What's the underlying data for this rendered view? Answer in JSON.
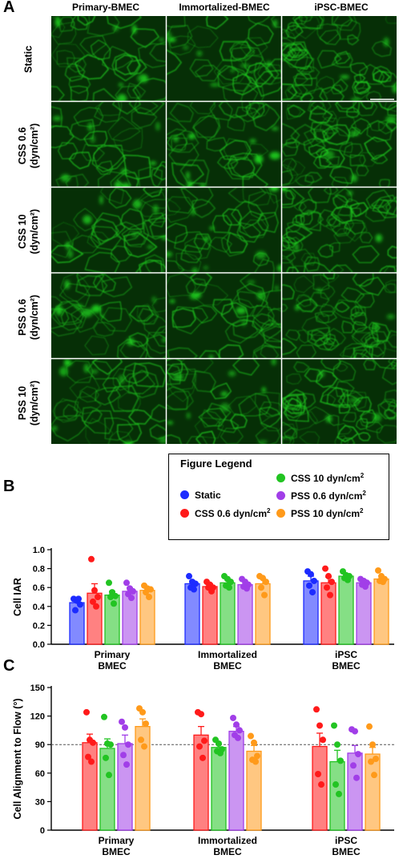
{
  "panel_a": {
    "letter": "A",
    "columns": [
      "Primary-BMEC",
      "Immortalized-BMEC",
      "iPSC-BMEC"
    ],
    "rows": [
      {
        "line1": "Static",
        "line2": ""
      },
      {
        "line1": "CSS 0.6",
        "line2": "(dyn/cm²)"
      },
      {
        "line1": "CSS 10",
        "line2": "(dyn/cm²)"
      },
      {
        "line1": "PSS 0.6",
        "line2": "(dyn/cm²)"
      },
      {
        "line1": "PSS 10",
        "line2": "(dyn/cm²)"
      }
    ],
    "image_color": "#1fd11f"
  },
  "legend": {
    "title": "Figure Legend",
    "entries": [
      {
        "label": "Static",
        "color": "#1c2bff"
      },
      {
        "label": "CSS 0.6 dyn/cm²",
        "color": "#ff1a1a"
      },
      {
        "label": "CSS 10 dyn/cm²",
        "color": "#22c422"
      },
      {
        "label": "PSS 0.6 dyn/cm²",
        "color": "#a13ee8"
      },
      {
        "label": "PSS 10 dyn/cm²",
        "color": "#ff9a1a"
      }
    ]
  },
  "chart_data": [
    {
      "panel": "B",
      "type": "bar",
      "ylabel": "Cell IAR",
      "ylim": [
        0,
        1.0
      ],
      "yticks": [
        "0.0",
        "0.2",
        "0.4",
        "0.6",
        "0.8",
        "1.0"
      ],
      "groups": [
        {
          "line1": "Primary",
          "line2": "BMEC"
        },
        {
          "line1": "Immortalized",
          "line2": "BMEC"
        },
        {
          "line1": "iPSC",
          "line2": "BMEC"
        }
      ],
      "series_names": [
        "Static",
        "CSS 0.6 dyn/cm²",
        "CSS 10 dyn/cm²",
        "PSS 0.6 dyn/cm²",
        "PSS 10 dyn/cm²"
      ],
      "means": [
        [
          0.44,
          0.54,
          0.52,
          0.56,
          0.57
        ],
        [
          0.64,
          0.61,
          0.65,
          0.63,
          0.64
        ],
        [
          0.67,
          0.65,
          0.72,
          0.65,
          0.69
        ]
      ],
      "errors": [
        [
          0.04,
          0.1,
          0.04,
          0.04,
          0.03
        ],
        [
          0.03,
          0.03,
          0.03,
          0.03,
          0.05
        ],
        [
          0.05,
          0.06,
          0.02,
          0.03,
          0.03
        ]
      ],
      "points": [
        [
          [
            0.48,
            0.46,
            0.42,
            0.36,
            0.48
          ],
          [
            0.9,
            0.57,
            0.5,
            0.45,
            0.4
          ],
          [
            0.65,
            0.55,
            0.51,
            0.5,
            0.43
          ],
          [
            0.65,
            0.59,
            0.56,
            0.53,
            0.49
          ],
          [
            0.62,
            0.59,
            0.58,
            0.55,
            0.5
          ]
        ],
        [
          [
            0.72,
            0.66,
            0.64,
            0.6,
            0.58
          ],
          [
            0.66,
            0.63,
            0.6,
            0.6,
            0.56
          ],
          [
            0.72,
            0.69,
            0.66,
            0.62,
            0.6
          ],
          [
            0.69,
            0.66,
            0.63,
            0.61,
            0.59
          ],
          [
            0.72,
            0.7,
            0.66,
            0.6,
            0.52
          ]
        ],
        [
          [
            0.77,
            0.74,
            0.67,
            0.62,
            0.55
          ],
          [
            0.8,
            0.72,
            0.66,
            0.6,
            0.52
          ],
          [
            0.77,
            0.73,
            0.72,
            0.7,
            0.68
          ],
          [
            0.69,
            0.67,
            0.65,
            0.63,
            0.61
          ],
          [
            0.78,
            0.72,
            0.69,
            0.67,
            0.66
          ]
        ]
      ]
    },
    {
      "panel": "C",
      "type": "bar",
      "ylabel": "Cell Alignment to Flow (°)",
      "ylim": [
        0,
        150
      ],
      "yticks": [
        "0",
        "30",
        "60",
        "90",
        "120",
        "150"
      ],
      "reference_line": 90,
      "groups": [
        {
          "line1": "Primary",
          "line2": "BMEC"
        },
        {
          "line1": "Immortalized",
          "line2": "BMEC"
        },
        {
          "line1": "iPSC",
          "line2": "BMEC"
        }
      ],
      "series_names": [
        "CSS 0.6 dyn/cm²",
        "CSS 10 dyn/cm²",
        "PSS 0.6 dyn/cm²",
        "PSS 10 dyn/cm²"
      ],
      "means": [
        [
          92,
          86,
          91,
          109
        ],
        [
          100,
          87,
          104,
          83
        ],
        [
          88,
          72,
          81,
          80
        ]
      ],
      "errors": [
        [
          9,
          10,
          9,
          8
        ],
        [
          9,
          4,
          5,
          6
        ],
        [
          14,
          12,
          8,
          7
        ]
      ],
      "points": [
        [
          [
            124,
            95,
            92,
            77,
            72
          ],
          [
            119,
            91,
            90,
            76,
            58
          ],
          [
            114,
            108,
            90,
            79,
            69
          ],
          [
            128,
            124,
            112,
            95,
            88
          ]
        ],
        [
          [
            124,
            122,
            94,
            88,
            76
          ],
          [
            95,
            91,
            85,
            83,
            81
          ],
          [
            118,
            111,
            105,
            100,
            97
          ],
          [
            99,
            92,
            78,
            74,
            72
          ]
        ],
        [
          [
            127,
            110,
            95,
            59,
            48
          ],
          [
            110,
            90,
            73,
            48,
            38
          ],
          [
            106,
            104,
            80,
            68,
            55
          ],
          [
            109,
            90,
            75,
            72,
            58
          ]
        ]
      ]
    }
  ]
}
